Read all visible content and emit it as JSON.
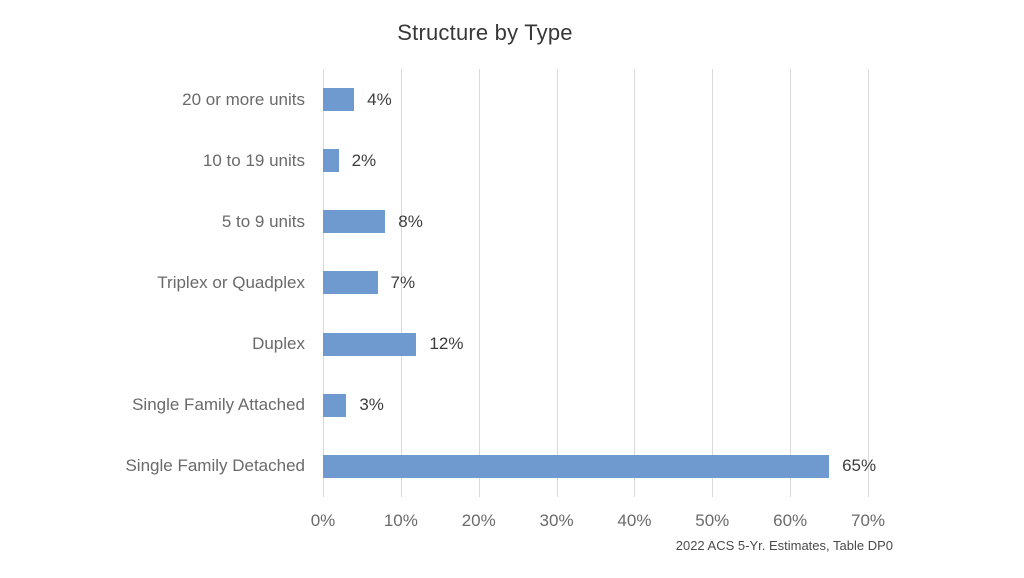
{
  "chart_data": {
    "type": "bar",
    "orientation": "horizontal",
    "title": "Structure by Type",
    "categories": [
      "20 or more units",
      "10 to 19 units",
      "5 to 9 units",
      "Triplex or Quadplex",
      "Duplex",
      "Single Family Attached",
      "Single Family Detached"
    ],
    "values": [
      4,
      2,
      8,
      7,
      12,
      3,
      65
    ],
    "value_labels": [
      "4%",
      "2%",
      "8%",
      "7%",
      "12%",
      "3%",
      "65%"
    ],
    "xlim": [
      0,
      70
    ],
    "x_ticks": [
      "0%",
      "10%",
      "20%",
      "30%",
      "40%",
      "50%",
      "60%",
      "70%"
    ],
    "grid": true,
    "legend": false,
    "bar_color": "#6f9ad0",
    "gridline_color": "#d9d9d9",
    "source_note": "2022 ACS 5-Yr. Estimates, Table DP0"
  }
}
